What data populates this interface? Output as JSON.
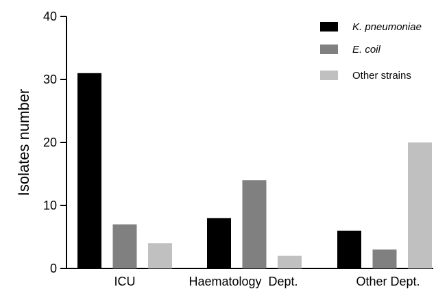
{
  "chart_data": {
    "type": "bar",
    "title": "",
    "xlabel": "",
    "ylabel": "Isolates number",
    "ylim": [
      0,
      40
    ],
    "yticks": [
      0,
      10,
      20,
      30,
      40
    ],
    "grid": false,
    "legend_position": "top-right",
    "categories": [
      "ICU",
      "Haematology  Dept.",
      "Other Dept."
    ],
    "series": [
      {
        "name": "K. pneumoniae",
        "italic": true,
        "color": "#000000",
        "values": [
          31,
          8,
          6
        ]
      },
      {
        "name": "E. coil",
        "italic": true,
        "color": "#808080",
        "values": [
          7,
          14,
          3
        ]
      },
      {
        "name": "Other strains",
        "italic": false,
        "color": "#c0c0c0",
        "values": [
          4,
          2,
          20
        ]
      }
    ]
  }
}
